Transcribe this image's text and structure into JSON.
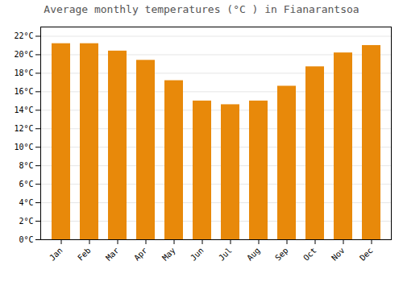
{
  "chart_data": {
    "type": "bar",
    "title": "Average monthly temperatures (°C ) in Fianarantsoa",
    "categories": [
      "Jan",
      "Feb",
      "Mar",
      "Apr",
      "May",
      "Jun",
      "Jul",
      "Aug",
      "Sep",
      "Oct",
      "Nov",
      "Dec"
    ],
    "values": [
      21.2,
      21.2,
      20.4,
      19.4,
      17.2,
      15.0,
      14.6,
      15.0,
      16.6,
      18.7,
      20.2,
      21.0
    ],
    "color": "#E8890A",
    "ylim": [
      0,
      23
    ],
    "yticks": [
      {
        "value": 0,
        "label": "0°C"
      },
      {
        "value": 2,
        "label": "2°C"
      },
      {
        "value": 4,
        "label": "4°C"
      },
      {
        "value": 6,
        "label": "6°C"
      },
      {
        "value": 8,
        "label": "8°C"
      },
      {
        "value": 10,
        "label": "10°C"
      },
      {
        "value": 12,
        "label": "12°C"
      },
      {
        "value": 14,
        "label": "14°C"
      },
      {
        "value": 16,
        "label": "16°C"
      },
      {
        "value": 18,
        "label": "18°C"
      },
      {
        "value": 20,
        "label": "20°C"
      },
      {
        "value": 22,
        "label": "22°C"
      }
    ],
    "grid": true
  }
}
